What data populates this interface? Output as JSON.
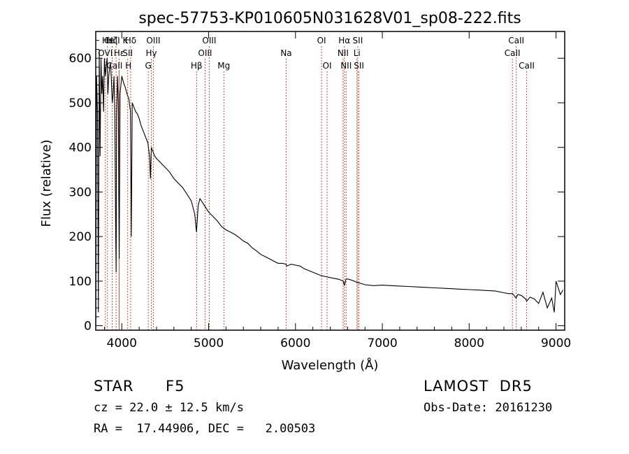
{
  "chart_data": {
    "type": "line",
    "title": "spec-57753-KP010605N031628V01_sp08-222.fits",
    "xlabel": "Wavelength (Å)",
    "ylabel": "Flux (relative)",
    "xlim": [
      3700,
      9100
    ],
    "ylim": [
      -10,
      660
    ],
    "x_ticks": [
      4000,
      5000,
      6000,
      7000,
      8000,
      9000
    ],
    "y_ticks": [
      0,
      100,
      200,
      300,
      400,
      500,
      600
    ],
    "grid": false,
    "series": [
      {
        "x": [
          3700,
          3710,
          3720,
          3730,
          3740,
          3750,
          3760,
          3770,
          3780,
          3790,
          3800,
          3810,
          3820,
          3830,
          3840,
          3850,
          3860,
          3870,
          3880,
          3890,
          3900,
          3910,
          3920,
          3930,
          3935,
          3940,
          3950,
          3960,
          3965,
          3970,
          3980,
          3990,
          4000,
          4020,
          4040,
          4060,
          4080,
          4100,
          4110,
          4120,
          4140,
          4160,
          4180,
          4200,
          4220,
          4240,
          4260,
          4280,
          4300,
          4320,
          4330,
          4340,
          4350,
          4360,
          4380,
          4400,
          4450,
          4500,
          4550,
          4600,
          4650,
          4700,
          4750,
          4800,
          4840,
          4860,
          4880,
          4900,
          4950,
          5000,
          5050,
          5100,
          5150,
          5200,
          5250,
          5300,
          5350,
          5400,
          5450,
          5500,
          5550,
          5600,
          5650,
          5700,
          5750,
          5800,
          5850,
          5890,
          5900,
          5950,
          6000,
          6050,
          6100,
          6150,
          6200,
          6250,
          6300,
          6350,
          6400,
          6450,
          6500,
          6550,
          6563,
          6580,
          6600,
          6650,
          6700,
          6750,
          6800,
          6900,
          7000,
          7100,
          7200,
          7300,
          7400,
          7500,
          7600,
          7700,
          7800,
          7900,
          8000,
          8100,
          8200,
          8300,
          8400,
          8450,
          8500,
          8540,
          8560,
          8600,
          8650,
          8662,
          8700,
          8750,
          8800,
          8850,
          8900,
          8950,
          8980,
          9000,
          9050,
          9080
        ],
        "y": [
          0,
          560,
          480,
          30,
          620,
          380,
          600,
          520,
          560,
          480,
          600,
          560,
          580,
          600,
          520,
          560,
          580,
          590,
          550,
          500,
          520,
          560,
          470,
          200,
          120,
          470,
          560,
          500,
          300,
          150,
          520,
          540,
          560,
          545,
          535,
          520,
          510,
          480,
          200,
          500,
          490,
          480,
          475,
          465,
          450,
          440,
          430,
          420,
          410,
          380,
          330,
          400,
          395,
          390,
          380,
          375,
          365,
          355,
          345,
          330,
          320,
          310,
          295,
          280,
          250,
          210,
          270,
          285,
          270,
          255,
          245,
          235,
          222,
          215,
          210,
          205,
          198,
          190,
          185,
          175,
          168,
          160,
          155,
          150,
          145,
          140,
          140,
          138,
          134,
          138,
          136,
          134,
          128,
          124,
          120,
          116,
          112,
          110,
          108,
          106,
          104,
          100,
          90,
          104,
          105,
          102,
          98,
          95,
          92,
          90,
          91,
          90,
          89,
          88,
          87,
          86,
          85,
          84,
          83,
          82,
          81,
          80,
          79,
          78,
          74,
          72,
          72,
          62,
          70,
          68,
          60,
          55,
          64,
          60,
          50,
          75,
          40,
          62,
          30,
          100,
          70,
          80
        ]
      }
    ],
    "annotations": [
      {
        "label": "OVI",
        "wavelength": 3811,
        "row": 1
      },
      {
        "label": "Hε",
        "wavelength": 3835,
        "row": 0
      },
      {
        "label": "Hζ",
        "wavelength": 3889,
        "row": 0
      },
      {
        "label": "CaII K",
        "wavelength": 3934,
        "row": 0
      },
      {
        "label": "Hε",
        "wavelength": 3970,
        "row": 1
      },
      {
        "label": "CaII H",
        "wavelength": 3968,
        "row": 2
      },
      {
        "label": "Hδ",
        "wavelength": 4102,
        "row": 0
      },
      {
        "label": "SII",
        "wavelength": 4068,
        "row": 1
      },
      {
        "label": "OIII",
        "wavelength": 4363,
        "row": 0
      },
      {
        "label": "Hγ",
        "wavelength": 4340,
        "row": 1
      },
      {
        "label": "G",
        "wavelength": 4305,
        "row": 2
      },
      {
        "label": "Hβ",
        "wavelength": 4861,
        "row": 2
      },
      {
        "label": "OIII",
        "wavelength": 4959,
        "row": 1
      },
      {
        "label": "OIII",
        "wavelength": 5007,
        "row": 0
      },
      {
        "label": "Mg",
        "wavelength": 5175,
        "row": 2
      },
      {
        "label": "Na",
        "wavelength": 5893,
        "row": 1
      },
      {
        "label": "OI",
        "wavelength": 6300,
        "row": 0
      },
      {
        "label": "OI",
        "wavelength": 6364,
        "row": 2
      },
      {
        "label": "Hα",
        "wavelength": 6563,
        "row": 0
      },
      {
        "label": "NII",
        "wavelength": 6548,
        "row": 1
      },
      {
        "label": "NII",
        "wavelength": 6583,
        "row": 2
      },
      {
        "label": "SII",
        "wavelength": 6717,
        "row": 0
      },
      {
        "label": "Li",
        "wavelength": 6708,
        "row": 1
      },
      {
        "label": "SII",
        "wavelength": 6731,
        "row": 2
      },
      {
        "label": "CaII",
        "wavelength": 8542,
        "row": 0
      },
      {
        "label": "CaII",
        "wavelength": 8498,
        "row": 1
      },
      {
        "label": "CaII",
        "wavelength": 8662,
        "row": 2
      }
    ]
  },
  "info": {
    "class": "STAR",
    "subclass": "F5",
    "survey": "LAMOST  DR5",
    "cz": "cz = 22.0 ± 12.5 km/s",
    "obs_date": "Obs-Date: 20161230",
    "coords": "RA =  17.44906, DEC =   2.00503"
  },
  "colors": {
    "line_marker": "#c0392b",
    "spectrum": "#000000",
    "axes": "#000000"
  }
}
